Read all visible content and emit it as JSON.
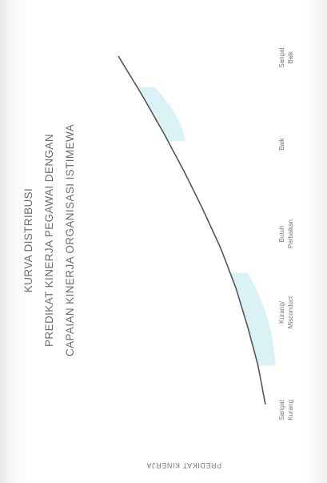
{
  "chart_data": {
    "type": "area",
    "title_lines": [
      "KURVA DISTRIBUSI",
      "PREDIKAT KINERJA PEGAWAI DENGAN",
      "CAPAIAN KINERJA ORGANISASI ISTIMEWA"
    ],
    "categories": [
      [
        "Sangat",
        "Kurang"
      ],
      [
        "Kurang/",
        "Misconduct"
      ],
      [
        "Butuh",
        "Perbaikan"
      ],
      [
        "Baik"
      ],
      [
        "Sangat",
        "Baik"
      ]
    ],
    "xlabel": "",
    "ylabel": "",
    "axis_caption": "PREDIKAT KINERJA",
    "curve": [
      {
        "x": 0.0,
        "y": 0.0
      },
      {
        "x": 0.5,
        "y": 0.05
      },
      {
        "x": 1.0,
        "y": 0.12
      },
      {
        "x": 1.5,
        "y": 0.2
      },
      {
        "x": 2.0,
        "y": 0.3
      },
      {
        "x": 2.5,
        "y": 0.42
      },
      {
        "x": 3.0,
        "y": 0.55
      },
      {
        "x": 3.5,
        "y": 0.69
      },
      {
        "x": 4.0,
        "y": 0.84
      },
      {
        "x": 4.5,
        "y": 1.0
      }
    ],
    "shaded_bands": [
      {
        "from": 0.5,
        "to": 1.7
      },
      {
        "from": 3.4,
        "to": 4.1
      }
    ],
    "colors": {
      "curve": "#555555",
      "fill": "#cdeef0"
    }
  }
}
